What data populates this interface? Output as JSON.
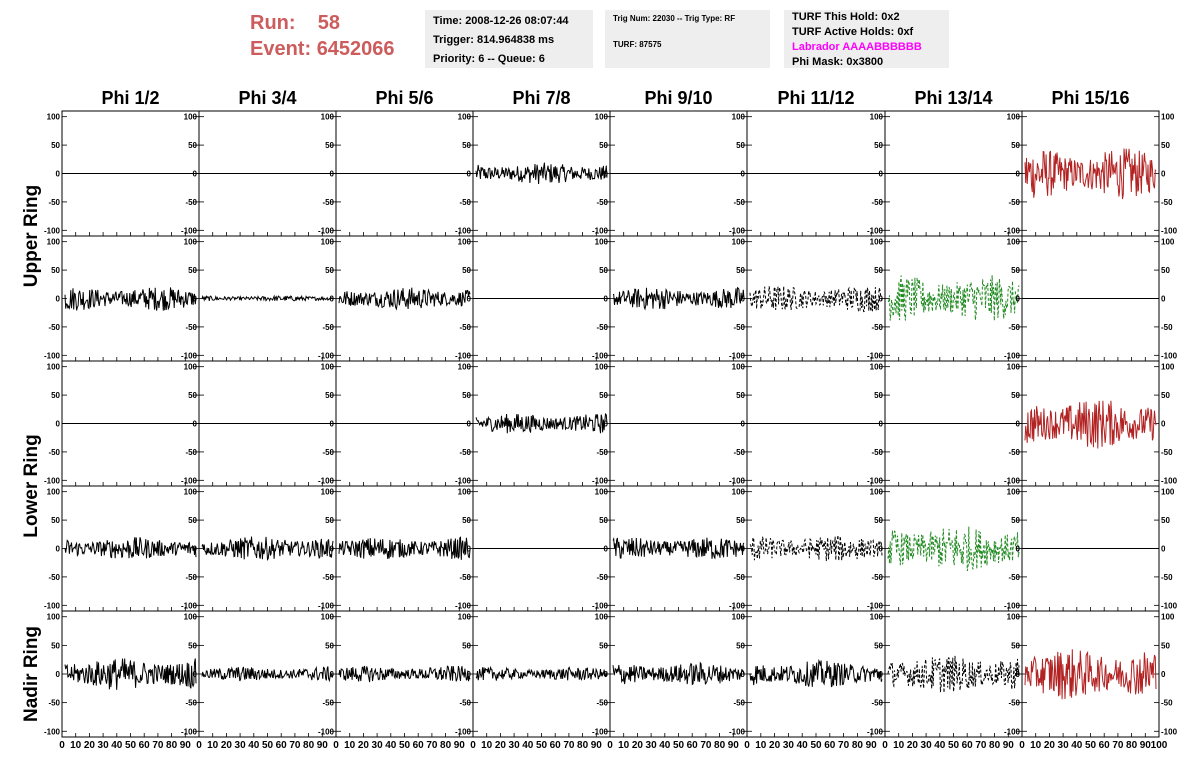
{
  "header": {
    "run_label": "Run:",
    "run_value": "58",
    "event_label": "Event:",
    "event_value": "6452066",
    "time": "Time: 2008-12-26 08:07:44",
    "trigger": "Trigger: 814.964838 ms",
    "priority": "Priority: 6 -- Queue: 6",
    "trig_num": "Trig Num: 22030 -- Trig Type: RF",
    "turf": "TURF: 87575",
    "turf_hold": "TURF This Hold: 0x2",
    "turf_active": "TURF Active Holds: 0xf",
    "labrador": "Labrador AAAABBBBBB",
    "phi_mask": "Phi Mask: 0x3800"
  },
  "colors": {
    "red_title": "#cd5c5c",
    "trace_black": "#000000",
    "trace_red": "#b22222",
    "trace_green": "#228b22",
    "magenta": "#ff00ff"
  },
  "chart_data": {
    "type": "line",
    "columns": [
      "Phi 1/2",
      "Phi 3/4",
      "Phi 5/6",
      "Phi 7/8",
      "Phi 9/10",
      "Phi 11/12",
      "Phi 13/14",
      "Phi 15/16"
    ],
    "ring_labels": [
      "Upper Ring",
      "Lower Ring",
      "Nadir Ring"
    ],
    "y_ticks": [
      "100",
      "50",
      "0",
      "-50",
      "-100"
    ],
    "x_ticks": [
      "0",
      "10",
      "20",
      "30",
      "40",
      "50",
      "60",
      "70",
      "80",
      "90",
      "100"
    ],
    "xlim": [
      0,
      100
    ],
    "ylim": [
      -110,
      110
    ],
    "grid": false,
    "panels": [
      [
        {
          "trace": "flat",
          "color": "black"
        },
        {
          "trace": "flat",
          "color": "black"
        },
        {
          "trace": "flat",
          "color": "black"
        },
        {
          "trace": "noise",
          "amp": 16,
          "color": "black",
          "style": "solid"
        },
        {
          "trace": "flat",
          "color": "black"
        },
        {
          "trace": "flat",
          "color": "black"
        },
        {
          "trace": "flat",
          "color": "black"
        },
        {
          "trace": "noise",
          "amp": 38,
          "color": "red",
          "style": "solid"
        }
      ],
      [
        {
          "trace": "noise",
          "amp": 18,
          "color": "black",
          "style": "solid"
        },
        {
          "trace": "noise",
          "amp": 4,
          "color": "black",
          "style": "solid"
        },
        {
          "trace": "noise",
          "amp": 17,
          "color": "black",
          "style": "solid"
        },
        {
          "trace": "flat",
          "color": "black"
        },
        {
          "trace": "noise",
          "amp": 17,
          "color": "black",
          "style": "solid"
        },
        {
          "trace": "noise",
          "amp": 20,
          "color": "black",
          "style": "dashed"
        },
        {
          "trace": "noise",
          "amp": 35,
          "color": "green",
          "style": "dashed"
        },
        {
          "trace": "flat",
          "color": "black"
        }
      ],
      [
        {
          "trace": "flat",
          "color": "black"
        },
        {
          "trace": "flat",
          "color": "black"
        },
        {
          "trace": "flat",
          "color": "black"
        },
        {
          "trace": "noise",
          "amp": 15,
          "color": "black",
          "style": "solid"
        },
        {
          "trace": "flat",
          "color": "black"
        },
        {
          "trace": "flat",
          "color": "black"
        },
        {
          "trace": "flat",
          "color": "black"
        },
        {
          "trace": "noise",
          "amp": 38,
          "color": "red",
          "style": "solid"
        }
      ],
      [
        {
          "trace": "noise",
          "amp": 17,
          "color": "black",
          "style": "solid"
        },
        {
          "trace": "noise",
          "amp": 18,
          "color": "black",
          "style": "solid"
        },
        {
          "trace": "noise",
          "amp": 17,
          "color": "black",
          "style": "solid"
        },
        {
          "trace": "flat",
          "color": "black"
        },
        {
          "trace": "noise",
          "amp": 17,
          "color": "black",
          "style": "solid"
        },
        {
          "trace": "noise",
          "amp": 20,
          "color": "black",
          "style": "dashed"
        },
        {
          "trace": "noise",
          "amp": 35,
          "color": "green",
          "style": "dashed"
        },
        {
          "trace": "flat",
          "color": "black"
        }
      ],
      [
        {
          "trace": "noise",
          "amp": 24,
          "color": "black",
          "style": "solid"
        },
        {
          "trace": "noise",
          "amp": 11,
          "color": "black",
          "style": "solid"
        },
        {
          "trace": "noise",
          "amp": 12,
          "color": "black",
          "style": "solid"
        },
        {
          "trace": "noise",
          "amp": 10,
          "color": "black",
          "style": "solid"
        },
        {
          "trace": "noise",
          "amp": 17,
          "color": "black",
          "style": "solid"
        },
        {
          "trace": "noise",
          "amp": 20,
          "color": "black",
          "style": "solid"
        },
        {
          "trace": "noise",
          "amp": 28,
          "color": "black",
          "style": "dashed"
        },
        {
          "trace": "noise",
          "amp": 38,
          "color": "red",
          "style": "solid"
        }
      ]
    ]
  }
}
